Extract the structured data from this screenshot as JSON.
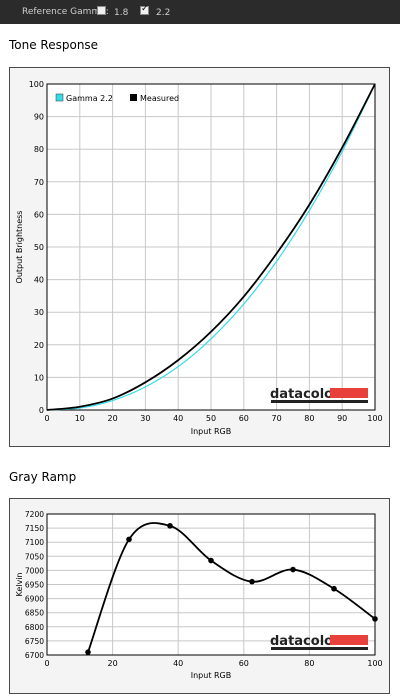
{
  "toolbar": {
    "label": "Reference Gamma:",
    "option1": {
      "label": "1.8",
      "checked": false
    },
    "option2": {
      "label": "2.2",
      "checked": true
    }
  },
  "sections": {
    "tone_title": "Tone Response",
    "gray_title": "Gray Ramp"
  },
  "logo": {
    "text": "datacolor",
    "bar_color": "#e8403a"
  },
  "colors": {
    "gamma_series": "#35dbe8",
    "measured_series": "#000000",
    "grid": "#c8c8c8"
  },
  "chart_data": [
    {
      "type": "line",
      "title": "Tone Response",
      "xlabel": "Input RGB",
      "ylabel": "Output Brightness",
      "xlim": [
        0,
        100
      ],
      "ylim": [
        0,
        100
      ],
      "xticks": [
        "0",
        "10",
        "20",
        "30",
        "40",
        "50",
        "60",
        "70",
        "80",
        "90",
        "100"
      ],
      "yticks": [
        "0",
        "10",
        "20",
        "30",
        "40",
        "50",
        "60",
        "70",
        "80",
        "90",
        "100"
      ],
      "grid": true,
      "legend_position": "top-left",
      "series": [
        {
          "name": "Gamma 2.2",
          "x": [
            0,
            10,
            20,
            30,
            40,
            50,
            60,
            70,
            80,
            90,
            100
          ],
          "values": [
            0,
            0.6,
            2.9,
            7.1,
            13.3,
            21.8,
            32.5,
            45.6,
            61.2,
            79.3,
            100
          ]
        },
        {
          "name": "Measured",
          "x": [
            0,
            10,
            20,
            30,
            40,
            50,
            60,
            70,
            80,
            90,
            100
          ],
          "values": [
            0,
            1,
            3.5,
            8.5,
            15.3,
            24,
            34.8,
            48,
            63,
            80.5,
            100
          ]
        }
      ]
    },
    {
      "type": "line",
      "title": "Gray Ramp",
      "xlabel": "Input RGB",
      "ylabel": "Kelvin",
      "xlim": [
        0,
        100
      ],
      "ylim": [
        6700,
        7200
      ],
      "xticks": [
        "0",
        "20",
        "40",
        "60",
        "80",
        "100"
      ],
      "yticks": [
        "6700",
        "6750",
        "6800",
        "6850",
        "6900",
        "6950",
        "7000",
        "7050",
        "7100",
        "7150",
        "7200"
      ],
      "grid": true,
      "series": [
        {
          "x": [
            12.5,
            25,
            37.5,
            50,
            62.5,
            75,
            87.5,
            100
          ],
          "values": [
            6710,
            7110,
            7158,
            7035,
            6960,
            7003,
            6935,
            6828
          ]
        }
      ]
    }
  ]
}
